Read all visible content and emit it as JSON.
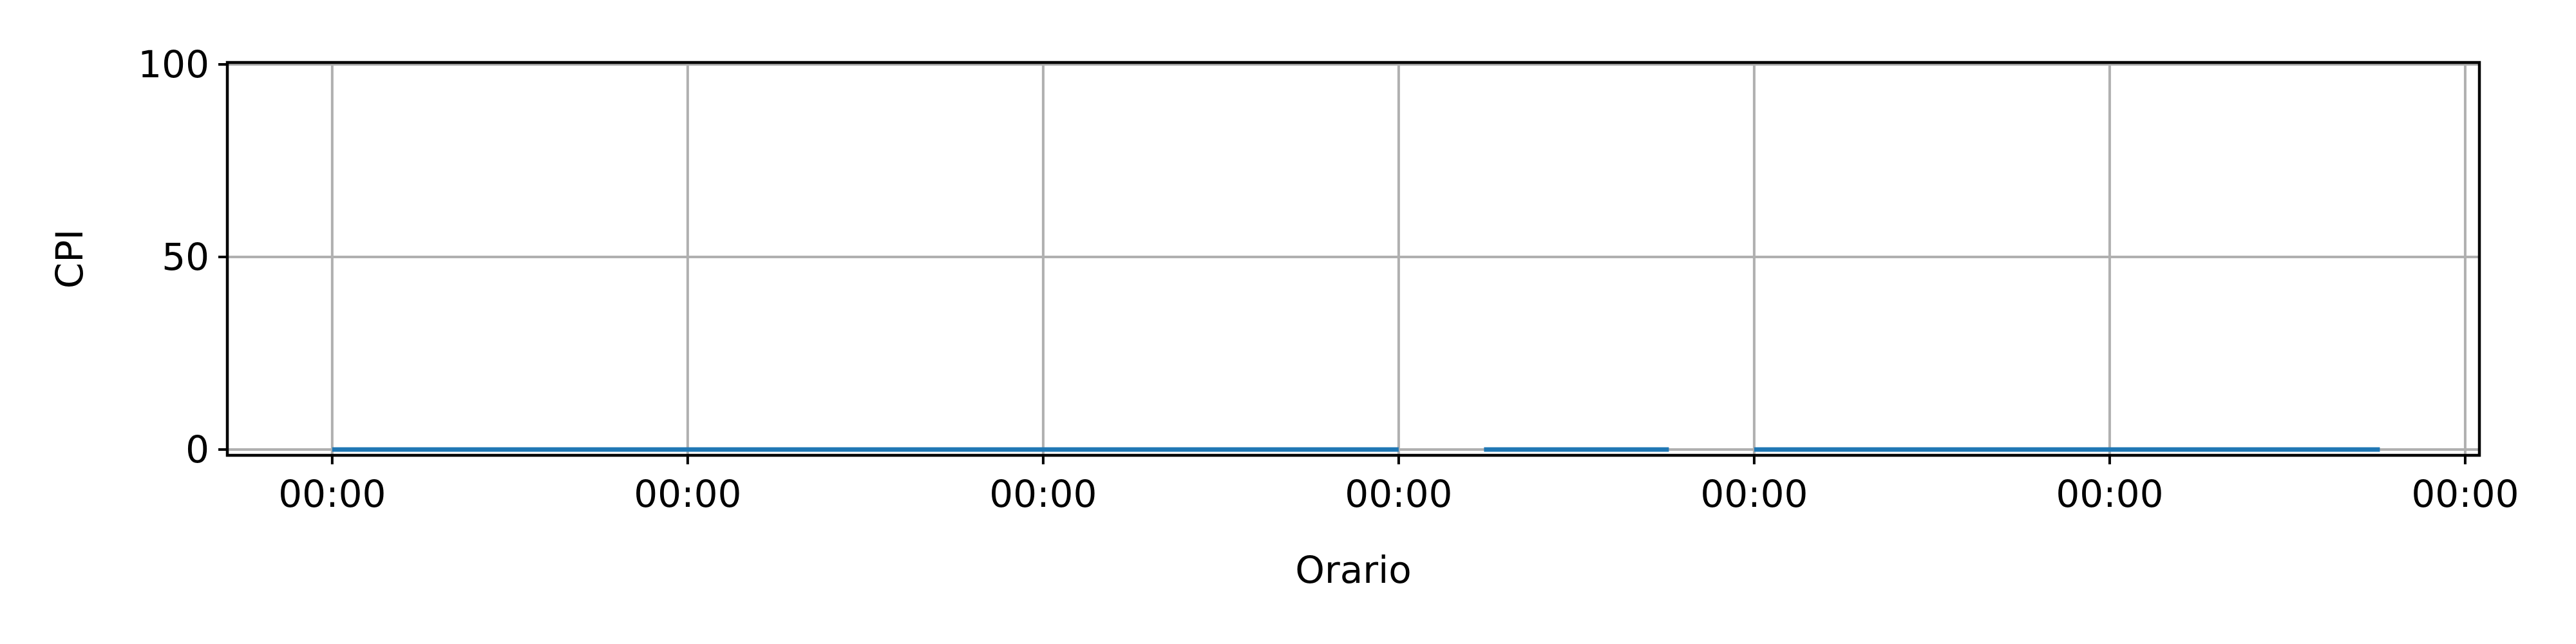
{
  "chart_data": {
    "type": "line",
    "title": "",
    "xlabel": "Orario",
    "ylabel": "CPI",
    "xlim": [
      -0.295,
      6.04
    ],
    "ylim": [
      -1.5,
      100.5
    ],
    "x_ticks": [
      {
        "value": 0,
        "label": "00:00"
      },
      {
        "value": 1,
        "label": "00:00"
      },
      {
        "value": 2,
        "label": "00:00"
      },
      {
        "value": 3,
        "label": "00:00"
      },
      {
        "value": 4,
        "label": "00:00"
      },
      {
        "value": 5,
        "label": "00:00"
      },
      {
        "value": 6,
        "label": "00:00"
      }
    ],
    "y_ticks": [
      {
        "value": 0,
        "label": "0"
      },
      {
        "value": 50,
        "label": "50"
      },
      {
        "value": 100,
        "label": "100"
      }
    ],
    "grid": true,
    "series_color": "#1f77b4",
    "series": [
      {
        "segments": [
          {
            "x": [
              0,
              3
            ],
            "y": [
              0,
              0
            ]
          },
          {
            "x": [
              3.24,
              3.76
            ],
            "y": [
              0,
              0
            ]
          },
          {
            "x": [
              4,
              5.76
            ],
            "y": [
              0,
              0
            ]
          }
        ]
      }
    ]
  }
}
